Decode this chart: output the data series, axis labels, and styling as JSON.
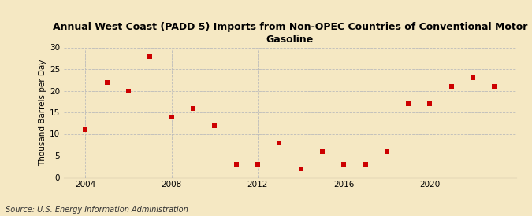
{
  "title_line1": "Annual West Coast (PADD 5) Imports from Non-OPEC Countries of Conventional Motor",
  "title_line2": "Gasoline",
  "ylabel": "Thousand Barrels per Day",
  "source": "Source: U.S. Energy Information Administration",
  "background_color": "#f5e8c3",
  "plot_bg_color": "#f5e8c3",
  "years": [
    2004,
    2005,
    2006,
    2007,
    2008,
    2009,
    2010,
    2011,
    2012,
    2013,
    2014,
    2015,
    2016,
    2017,
    2018,
    2019,
    2020,
    2021,
    2022,
    2023
  ],
  "values": [
    11,
    22,
    20,
    28,
    14,
    16,
    12,
    3,
    3,
    8,
    2,
    6,
    3,
    3,
    6,
    17,
    17,
    21,
    23,
    21
  ],
  "marker_color": "#cc0000",
  "marker_size": 5,
  "ylim": [
    0,
    30
  ],
  "yticks": [
    0,
    5,
    10,
    15,
    20,
    25,
    30
  ],
  "xticks": [
    2004,
    2008,
    2012,
    2016,
    2020
  ],
  "xlim": [
    2003,
    2024
  ],
  "grid_color": "#bbbbbb",
  "grid_style": "--",
  "title_fontsize": 9,
  "ylabel_fontsize": 7.5,
  "tick_fontsize": 7.5,
  "source_fontsize": 7
}
